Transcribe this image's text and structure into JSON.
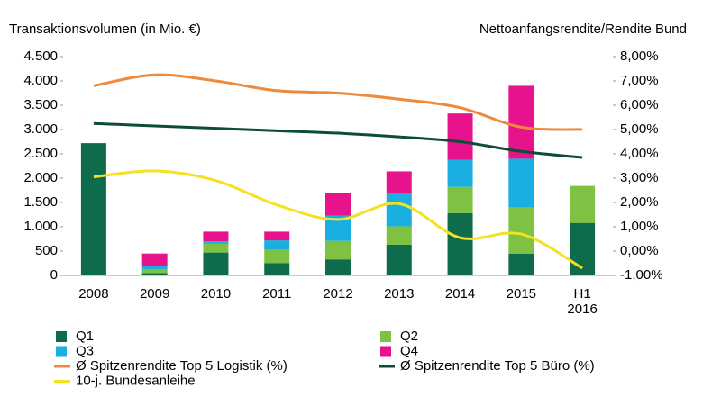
{
  "chart_data": {
    "type": "bar",
    "title": "Transaktionsvolumen (in Mio. €)",
    "y2_title": "Nettoanfangsrendite/Rendite Bund",
    "categories": [
      "2008",
      "2009",
      "2010",
      "2011",
      "2012",
      "2013",
      "2014",
      "2015",
      "H1 2016"
    ],
    "stacked": true,
    "series": [
      {
        "name": "Q1",
        "type": "bar",
        "color": "#0e6b4b",
        "values": [
          2720,
          50,
          470,
          250,
          330,
          630,
          1280,
          450,
          1080
        ]
      },
      {
        "name": "Q2",
        "type": "bar",
        "color": "#7dc242",
        "values": [
          null,
          80,
          180,
          280,
          380,
          380,
          540,
          950,
          760
        ]
      },
      {
        "name": "Q3",
        "type": "bar",
        "color": "#1aafe0",
        "values": [
          null,
          70,
          50,
          190,
          520,
          690,
          560,
          1000,
          null
        ]
      },
      {
        "name": "Q4",
        "type": "bar",
        "color": "#e6138c",
        "values": [
          null,
          250,
          200,
          180,
          470,
          440,
          950,
          1500,
          null
        ]
      },
      {
        "name": "Ø Spitzenrendite Top 5 Logistik (%)",
        "type": "line",
        "axis": "y2",
        "color": "#ef8a3c",
        "values": [
          6.8,
          7.25,
          7.0,
          6.6,
          6.5,
          6.25,
          5.9,
          5.1,
          5.0
        ]
      },
      {
        "name": "Ø Spitzenrendite Top 5 Büro (%)",
        "type": "line",
        "axis": "y2",
        "color": "#0d4d35",
        "values": [
          5.25,
          5.15,
          5.05,
          4.95,
          4.85,
          4.7,
          4.5,
          4.1,
          3.85
        ]
      },
      {
        "name": "10-j. Bundesanleihe",
        "type": "line",
        "axis": "y2",
        "color": "#f5e025",
        "values": [
          3.05,
          3.3,
          2.9,
          1.9,
          1.3,
          1.95,
          0.55,
          0.7,
          -0.7
        ]
      }
    ],
    "ylim": [
      0,
      4500
    ],
    "yticks": [
      0,
      500,
      {
        "value": 1000,
        "label": "1.000"
      },
      {
        "value": 1500,
        "label": "1.500"
      },
      {
        "value": 2000,
        "label": "2.000"
      },
      {
        "value": 2500,
        "label": "2.500"
      },
      {
        "value": 3000,
        "label": "3.000"
      },
      {
        "value": 3500,
        "label": "3.500"
      },
      {
        "value": 4000,
        "label": "4.000"
      },
      {
        "value": 4500,
        "label": "4.500"
      }
    ],
    "y2lim": [
      -1,
      8
    ],
    "y2ticks": [
      {
        "value": -1,
        "label": "-1,00%"
      },
      {
        "value": 0,
        "label": "0,00%"
      },
      {
        "value": 1,
        "label": "1,00%"
      },
      {
        "value": 2,
        "label": "2,00%"
      },
      {
        "value": 3,
        "label": "3,00%"
      },
      {
        "value": 4,
        "label": "4,00%"
      },
      {
        "value": 5,
        "label": "5,00%"
      },
      {
        "value": 6,
        "label": "6,00%"
      },
      {
        "value": 7,
        "label": "7,00%"
      },
      {
        "value": 8,
        "label": "8,00%"
      }
    ],
    "grid": false,
    "legend": "bottom"
  }
}
